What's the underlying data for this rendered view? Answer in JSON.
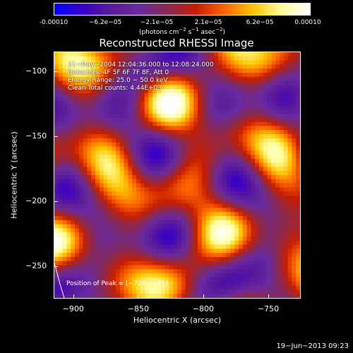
{
  "colorbar": {
    "ticks": [
      "-0.00010",
      "−6.2e−05",
      "−2.1e−05",
      "2.1e−05",
      "6.2e−05",
      "0.00010"
    ],
    "unit_main": "(photons cm",
    "unit_exp1": "−2",
    "unit_mid1": " s",
    "unit_exp2": "−1",
    "unit_mid2": " asec",
    "unit_exp3": "−2",
    "unit_end": ")",
    "colors": [
      "#0000ff",
      "#3a00c8",
      "#5a1a9a",
      "#6a2aa0",
      "#8a2a50",
      "#c81e00",
      "#ff6400",
      "#ffc400",
      "#ffff9a",
      "#ffffff"
    ]
  },
  "plot": {
    "title": "Reconstructed RHESSI Image",
    "xlabel": "Heliocentric X (arcsec)",
    "ylabel": "Heliocentric Y (arcsec)",
    "xticks": [
      "−900",
      "−850",
      "−800",
      "−750"
    ],
    "yticks": [
      "−100",
      "−150",
      "−200",
      "−250"
    ],
    "xlim": [
      -915,
      -725
    ],
    "ylim": [
      -275,
      -85
    ]
  },
  "info": {
    "line1": "21−May−2004 12:04:36.000 to 12:08:24.000",
    "line2": "Detectors: 4F 5F 6F 7F 8F, Att 0",
    "line3": "Energy Range: 25.0 − 50.0 keV",
    "line4": "Clean     Total counts: 4.44E+03"
  },
  "peak": "Position of Peak = [−728,−173]",
  "footer": "19−Jun−2013 09:23"
}
